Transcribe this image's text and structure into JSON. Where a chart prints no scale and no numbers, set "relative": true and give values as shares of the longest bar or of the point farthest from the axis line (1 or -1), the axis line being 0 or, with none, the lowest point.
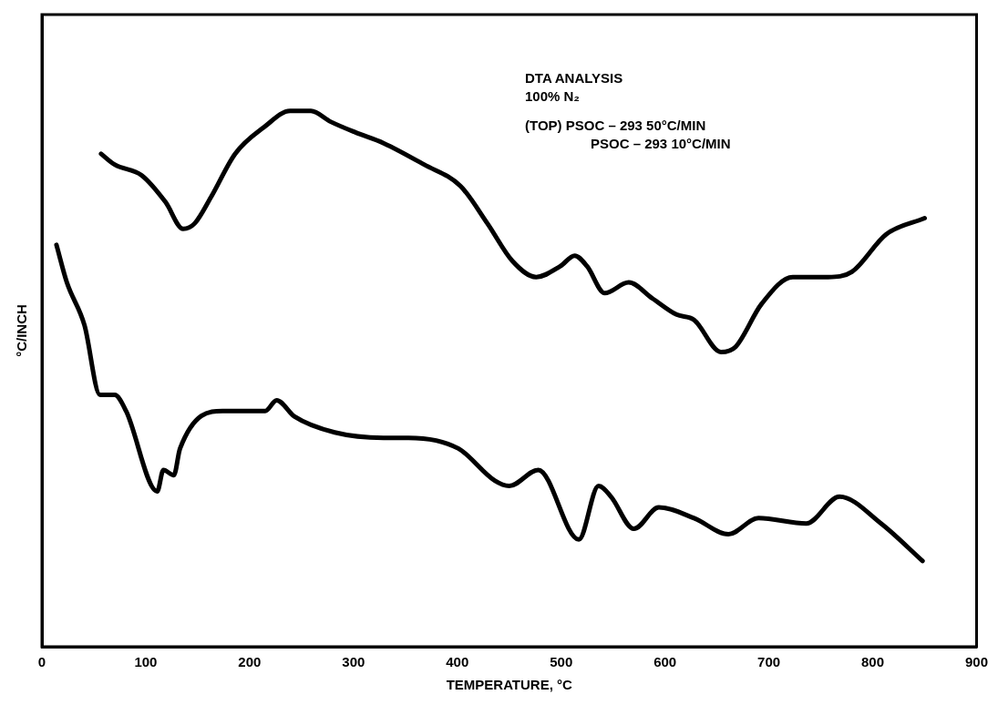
{
  "chart_data": {
    "type": "line",
    "relative": true,
    "xlabel": "TEMPERATURE, °C",
    "ylabel": "°C/INCH",
    "xlim": [
      0,
      900
    ],
    "xticks": [
      0,
      100,
      200,
      300,
      400,
      500,
      600,
      700,
      800,
      900
    ],
    "grid": false,
    "legend": false,
    "marker": "none",
    "line_style": "solid",
    "annotations": [
      "DTA ANALYSIS",
      "100% N₂",
      "(TOP) PSOC – 293 50°C/MIN",
      "PSOC – 293 10°C/MIN"
    ],
    "series": [
      {
        "color": "#000000",
        "x": [
          57,
          70,
          96,
          119,
          136,
          147,
          163,
          186,
          214,
          239,
          259,
          278,
          302,
          329,
          368,
          403,
          429,
          453,
          476,
          499,
          513,
          525,
          542,
          565,
          588,
          611,
          628,
          654,
          668,
          693,
          723,
          757,
          780,
          813,
          850
        ],
        "values": [
          0.92,
          0.9,
          0.88,
          0.83,
          0.78,
          0.79,
          0.84,
          0.92,
          0.97,
          1.0,
          1.0,
          0.98,
          0.96,
          0.94,
          0.9,
          0.86,
          0.79,
          0.72,
          0.69,
          0.71,
          0.73,
          0.71,
          0.66,
          0.68,
          0.65,
          0.62,
          0.61,
          0.55,
          0.56,
          0.64,
          0.69,
          0.69,
          0.7,
          0.77,
          0.8
        ]
      },
      {
        "color": "#000000",
        "x": [
          14,
          24,
          41,
          56,
          70,
          81,
          111,
          117,
          127,
          133,
          174,
          215,
          226,
          243,
          282,
          329,
          353,
          401,
          436,
          450,
          478,
          517,
          536,
          548,
          570,
          594,
          628,
          661,
          690,
          736,
          768,
          808,
          848
        ],
        "values": [
          0.75,
          0.68,
          0.6,
          0.47,
          0.47,
          0.44,
          0.29,
          0.33,
          0.32,
          0.37,
          0.44,
          0.44,
          0.46,
          0.43,
          0.4,
          0.39,
          0.39,
          0.37,
          0.31,
          0.3,
          0.33,
          0.2,
          0.3,
          0.28,
          0.22,
          0.26,
          0.24,
          0.21,
          0.24,
          0.23,
          0.28,
          0.23,
          0.16
        ]
      }
    ]
  }
}
